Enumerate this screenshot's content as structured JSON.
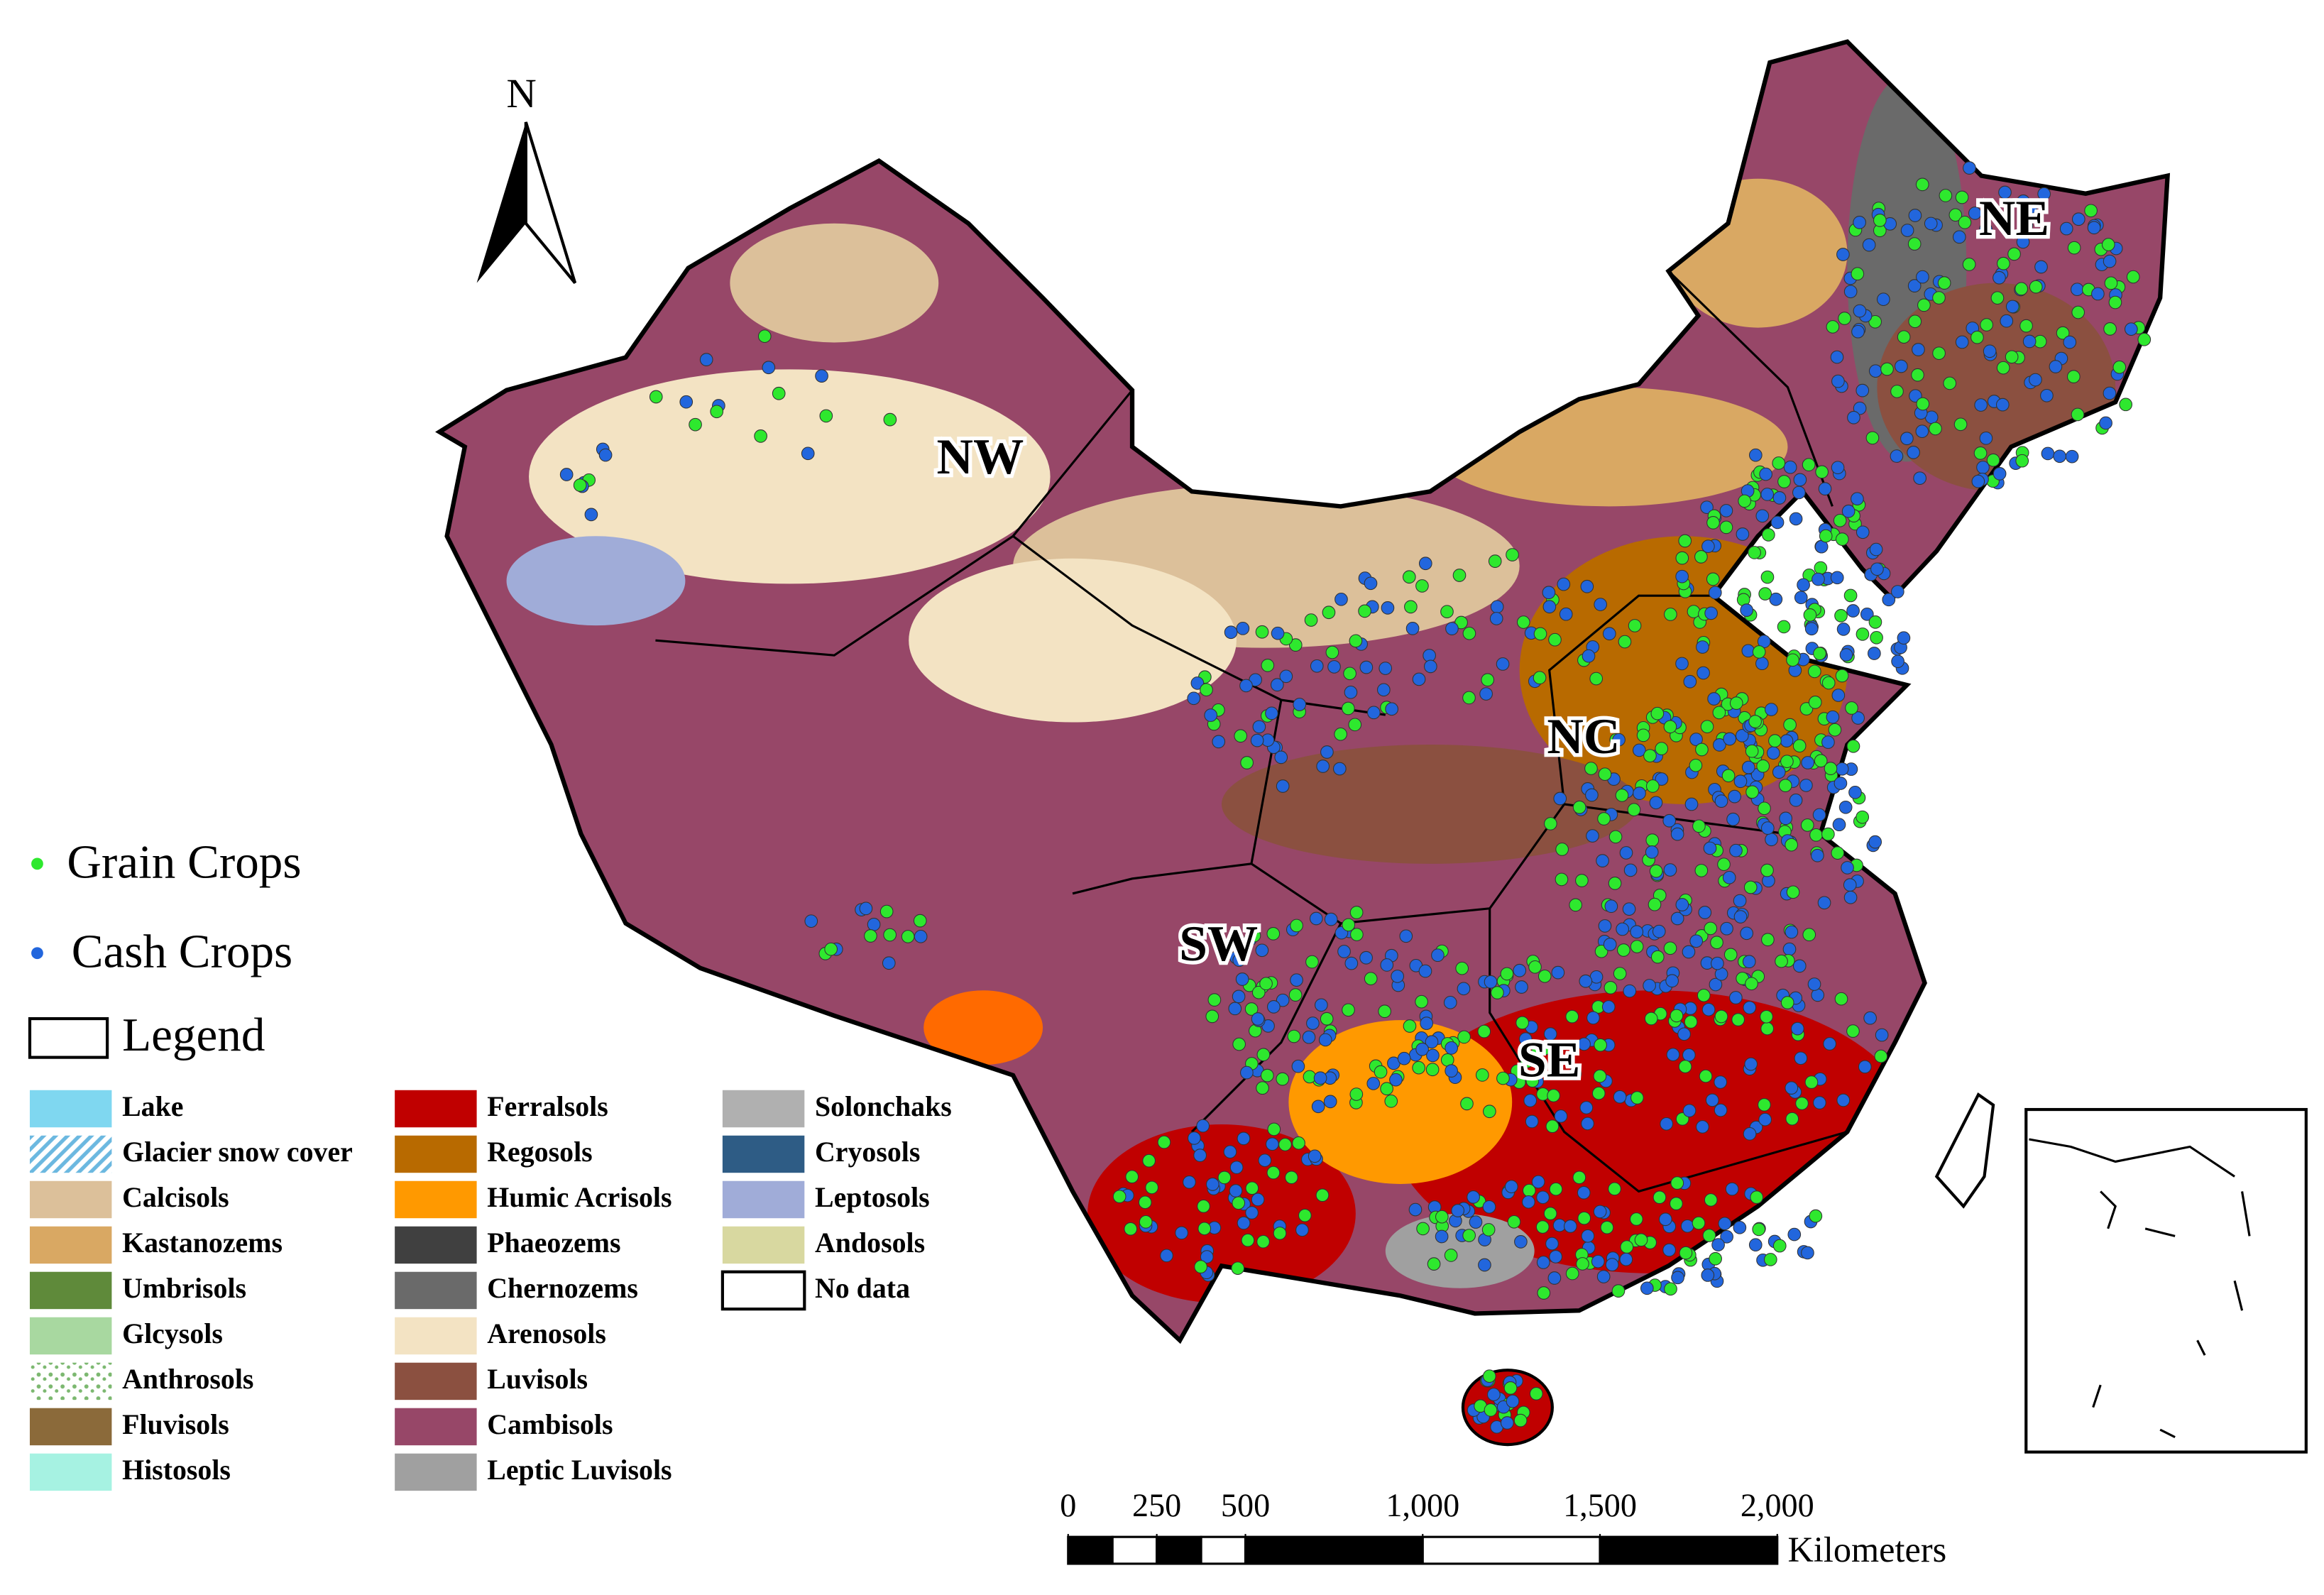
{
  "north_arrow": "N",
  "regions": [
    "NW",
    "NE",
    "NC",
    "SW",
    "SE"
  ],
  "point_legend": [
    {
      "label": "Grain Crops",
      "color": "#2ee82e"
    },
    {
      "label": "Cash Crops",
      "color": "#2266dd"
    }
  ],
  "legend_title": "Legend",
  "soil_legend": [
    [
      {
        "label": "Lake",
        "color": "#7fd7f0"
      },
      {
        "label": "Glacier snow cover",
        "color": "#6bb8e0",
        "pattern": "hatch"
      },
      {
        "label": "Calcisols",
        "color": "#dcc09a"
      },
      {
        "label": "Kastanozems",
        "color": "#d9a863"
      },
      {
        "label": "Umbrisols",
        "color": "#5f8a3a"
      },
      {
        "label": "Glcysols",
        "color": "#a8d8a0"
      },
      {
        "label": "Anthrosols",
        "color": "#7cb870",
        "pattern": "speckle"
      },
      {
        "label": "Fluvisols",
        "color": "#8b6a3a"
      },
      {
        "label": "Histosols",
        "color": "#a6f2e2"
      }
    ],
    [
      {
        "label": "Ferralsols",
        "color": "#c00000"
      },
      {
        "label": "Regosols",
        "color": "#b86a00"
      },
      {
        "label": "Humic Acrisols",
        "color": "#ff9900"
      },
      {
        "label": "Phaeozems",
        "color": "#404040"
      },
      {
        "label": "Chernozems",
        "color": "#6a6a6a"
      },
      {
        "label": "Arenosols",
        "color": "#f3e3c3"
      },
      {
        "label": "Luvisols",
        "color": "#8b5040"
      },
      {
        "label": "Cambisols",
        "color": "#974768"
      },
      {
        "label": "Leptic Luvisols",
        "color": "#a0a0a0"
      }
    ],
    [
      {
        "label": "Solonchaks",
        "color": "#b0b0b0"
      },
      {
        "label": "Cryosols",
        "color": "#2e5c85"
      },
      {
        "label": "Leptosols",
        "color": "#a0acd8"
      },
      {
        "label": "Andosols",
        "color": "#d8d8a0"
      },
      {
        "label": "No data",
        "color": "#ffffff"
      }
    ]
  ],
  "scale_bar": {
    "unit": "Kilometers",
    "ticks": [
      0,
      250,
      500,
      {
        "value": 1000,
        "label": "1,000"
      },
      {
        "value": 1500,
        "label": "1,500"
      },
      {
        "value": 2000,
        "label": "2,000"
      }
    ]
  }
}
